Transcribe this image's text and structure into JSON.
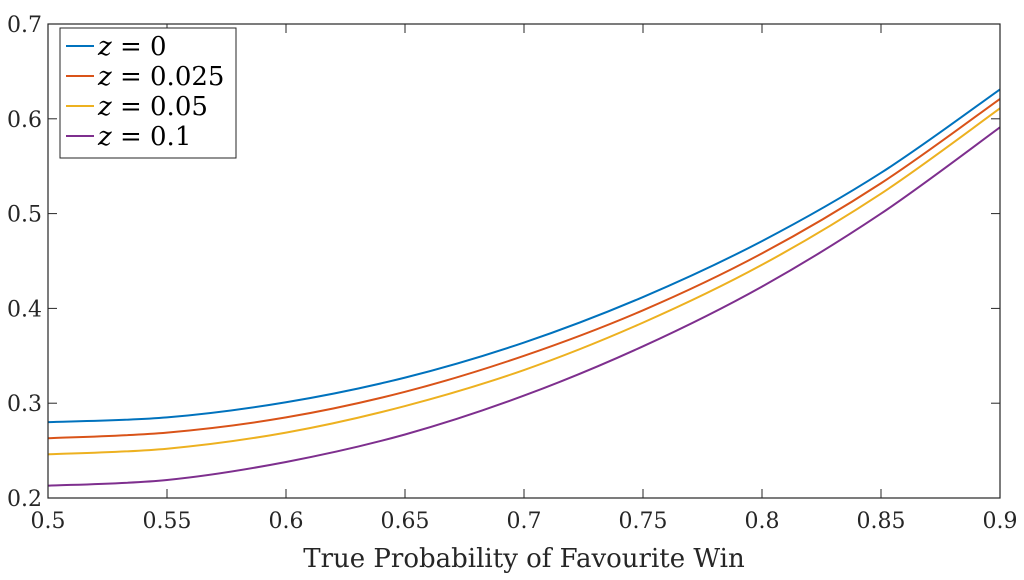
{
  "chart_data": {
    "type": "line",
    "title": "",
    "xlabel": "True Probability of Favourite Win",
    "ylabel": "",
    "xlim": [
      0.5,
      0.9
    ],
    "ylim": [
      0.2,
      0.7
    ],
    "xticks": [
      "0.5",
      "0.55",
      "0.6",
      "0.65",
      "0.7",
      "0.75",
      "0.8",
      "0.85",
      "0.9"
    ],
    "yticks": [
      "0.2",
      "0.3",
      "0.4",
      "0.5",
      "0.6",
      "0.7"
    ],
    "grid": false,
    "legend_position": "top-left",
    "x": [
      0.5,
      0.55,
      0.6,
      0.65,
      0.7,
      0.75,
      0.8,
      0.85,
      0.9
    ],
    "series": [
      {
        "name": "z = 0",
        "legend_var": "z",
        "legend_rest": " = 0",
        "color": "#0072BD",
        "values": [
          0.28,
          0.285,
          0.301,
          0.327,
          0.364,
          0.412,
          0.471,
          0.543,
          0.631
        ]
      },
      {
        "name": "z = 0.025",
        "legend_var": "z",
        "legend_rest": " = 0.025",
        "color": "#D95319",
        "values": [
          0.263,
          0.269,
          0.285,
          0.312,
          0.35,
          0.398,
          0.458,
          0.532,
          0.621
        ]
      },
      {
        "name": "z = 0.05",
        "legend_var": "z",
        "legend_rest": " = 0.05",
        "color": "#EDB120",
        "values": [
          0.246,
          0.252,
          0.269,
          0.297,
          0.335,
          0.385,
          0.446,
          0.521,
          0.611
        ]
      },
      {
        "name": "z = 0.1",
        "legend_var": "z",
        "legend_rest": " = 0.1",
        "color": "#7E2F8E",
        "values": [
          0.213,
          0.219,
          0.238,
          0.267,
          0.308,
          0.36,
          0.423,
          0.5,
          0.591
        ]
      }
    ]
  }
}
